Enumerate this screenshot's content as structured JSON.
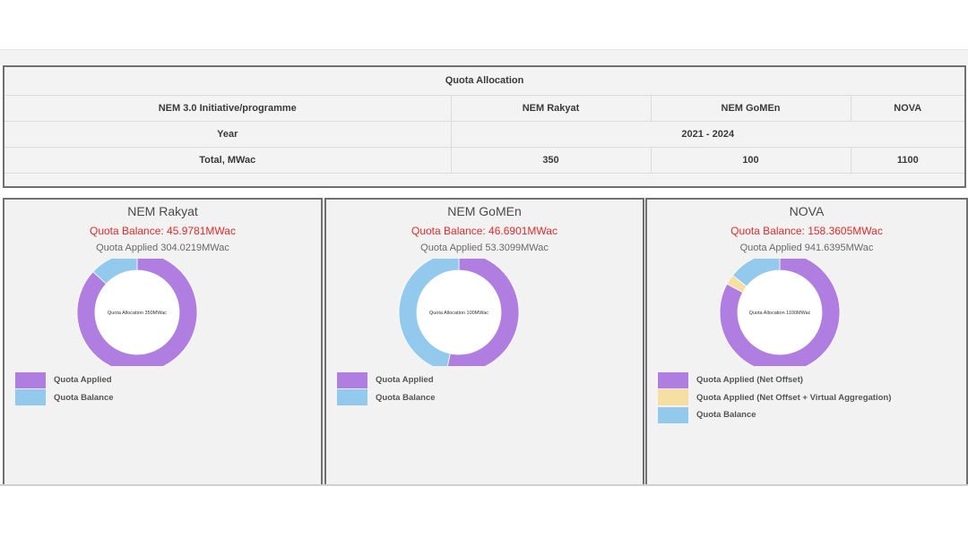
{
  "table": {
    "title": "Quota Allocation",
    "header_label": "NEM 3.0 Initiative/programme",
    "columns": [
      "NEM Rakyat",
      "NEM GoMEn",
      "NOVA"
    ],
    "year_label": "Year",
    "year_value": "2021 - 2024",
    "total_label": "Total, MWac",
    "totals": [
      "350",
      "100",
      "1100"
    ]
  },
  "panels": [
    {
      "title": "NEM Rakyat",
      "balance_text": "Quota Balance: 45.9781MWac",
      "applied_text": "Quota Applied 304.0219MWac",
      "center_label": "Quota Allocation 350MWac"
    },
    {
      "title": "NEM GoMEn",
      "balance_text": "Quota Balance: 46.6901MWac",
      "applied_text": "Quota Applied 53.3099MWac",
      "center_label": "Quota Allocation 100MWac"
    },
    {
      "title": "NOVA",
      "balance_text": "Quota Balance: 158.3605MWac",
      "applied_text": "Quota Applied 941.6395MWac",
      "center_label": "Quota Allocation 1100MWac"
    }
  ],
  "colors": {
    "applied": "#b07ee0",
    "virtual": "#f7dea3",
    "balance": "#94c9ee",
    "balance_text": "#e02b2b"
  },
  "chart_data": [
    {
      "type": "pie",
      "title": "NEM Rakyat",
      "categories": [
        "Quota Applied",
        "Quota Balance"
      ],
      "values": [
        304.0219,
        45.9781
      ]
    },
    {
      "type": "pie",
      "title": "NEM GoMEn",
      "categories": [
        "Quota Applied",
        "Quota Balance"
      ],
      "values": [
        53.3099,
        46.6901
      ]
    },
    {
      "type": "pie",
      "title": "NOVA",
      "categories": [
        "Quota Applied (Net Offset)",
        "Quota Applied (Net Offset + Virtual Aggregation)",
        "Quota Balance"
      ],
      "values": [
        911.6,
        30.0395,
        158.3605
      ]
    }
  ]
}
